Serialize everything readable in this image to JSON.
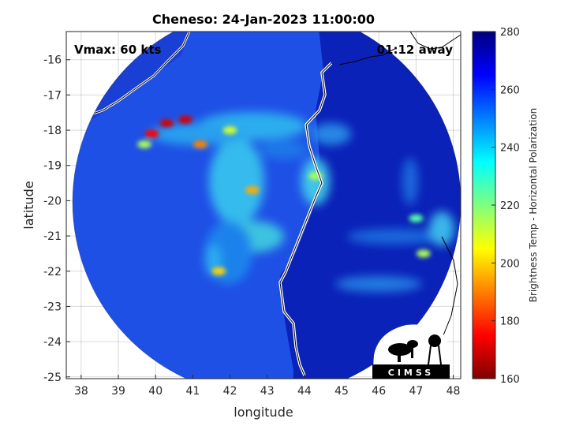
{
  "chart_data": {
    "type": "heatmap",
    "title": "Cheneso: 24-Jan-2023 11:00:00",
    "xlabel": "longitude",
    "ylabel": "latitude",
    "xlim": [
      37.6,
      48.2
    ],
    "ylim": [
      -25.05,
      -15.2
    ],
    "x_ticks": [
      38,
      39,
      40,
      41,
      42,
      43,
      44,
      45,
      46,
      47,
      48
    ],
    "y_ticks": [
      -16,
      -17,
      -18,
      -19,
      -20,
      -21,
      -22,
      -23,
      -24,
      -25
    ],
    "grid": true,
    "annotations": {
      "vmax": "Vmax: 60 kts",
      "time_away": "01:12 away"
    },
    "colorbar": {
      "label": "Brightness Temp - Horizontal Polarization",
      "range": [
        160,
        280
      ],
      "ticks": [
        160,
        180,
        200,
        220,
        240,
        260,
        280
      ],
      "colormap": "jet"
    },
    "swath_center": [
      42.8,
      -20.1
    ],
    "swath_radius_deg": 5.0,
    "warm_features": [
      {
        "lon": 40.3,
        "lat": -17.8,
        "value": 170
      },
      {
        "lon": 40.8,
        "lat": -17.7,
        "value": 170
      },
      {
        "lon": 39.9,
        "lat": -18.1,
        "value": 175
      },
      {
        "lon": 41.2,
        "lat": -18.4,
        "value": 190
      },
      {
        "lon": 39.7,
        "lat": -18.4,
        "value": 215
      },
      {
        "lon": 42.6,
        "lat": -19.7,
        "value": 195
      },
      {
        "lon": 42.0,
        "lat": -18.0,
        "value": 210
      },
      {
        "lon": 41.7,
        "lat": -22.0,
        "value": 200
      },
      {
        "lon": 47.2,
        "lat": -21.5,
        "value": 215
      },
      {
        "lon": 47.0,
        "lat": -20.5,
        "value": 225
      },
      {
        "lon": 44.3,
        "lat": -19.3,
        "value": 215
      }
    ]
  },
  "logo": {
    "text": "CIMSS"
  }
}
